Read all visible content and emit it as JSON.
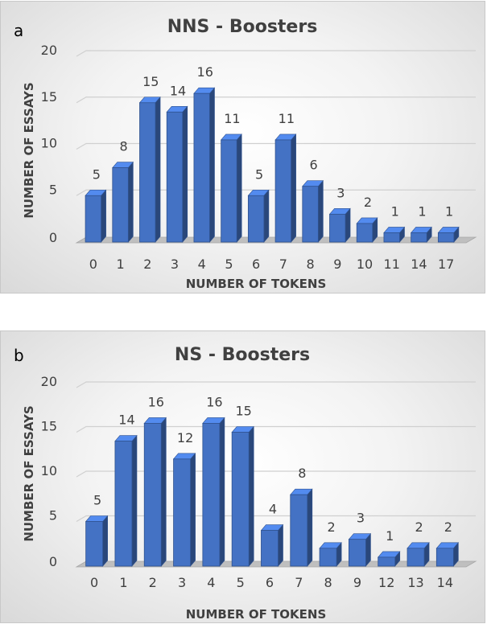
{
  "chart_data": [
    {
      "type": "bar",
      "panel_letter": "a",
      "title": "NNS - Boosters",
      "xlabel": "NUMBER OF TOKENS",
      "ylabel": "NUMBER OF ESSAYS",
      "categories": [
        "0",
        "1",
        "2",
        "3",
        "4",
        "5",
        "6",
        "7",
        "8",
        "9",
        "10",
        "11",
        "14",
        "17"
      ],
      "values": [
        5,
        8,
        15,
        14,
        16,
        11,
        5,
        11,
        6,
        3,
        2,
        1,
        1,
        1
      ],
      "ylim": [
        0,
        20
      ],
      "yticks": [
        "0",
        "5",
        "10",
        "15",
        "20"
      ],
      "grid": true,
      "bar_color": "#4472c4"
    },
    {
      "type": "bar",
      "panel_letter": "b",
      "title": "NS - Boosters",
      "xlabel": "NUMBER OF TOKENS",
      "ylabel": "NUMBER OF ESSAYS",
      "categories": [
        "0",
        "1",
        "2",
        "3",
        "4",
        "5",
        "6",
        "7",
        "8",
        "9",
        "12",
        "13",
        "14"
      ],
      "values": [
        5,
        14,
        16,
        12,
        16,
        15,
        4,
        8,
        2,
        3,
        1,
        2,
        2
      ],
      "ylim": [
        0,
        20
      ],
      "yticks": [
        "0",
        "5",
        "10",
        "15",
        "20"
      ],
      "grid": true,
      "bar_color": "#4472c4"
    }
  ]
}
